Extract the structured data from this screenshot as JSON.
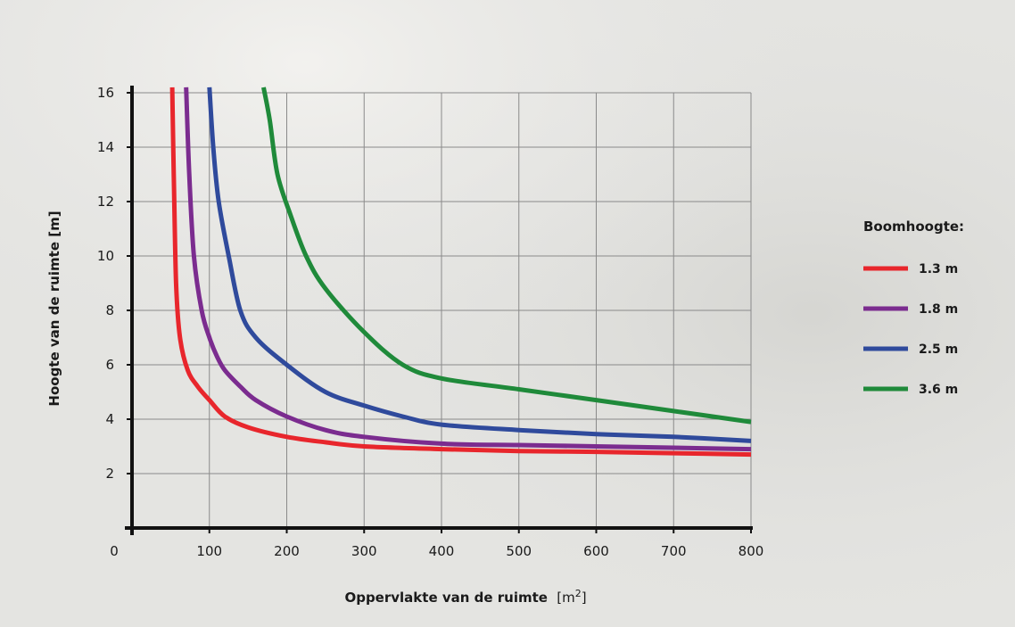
{
  "chart_data": {
    "type": "line",
    "title": "",
    "xlabel": "Oppervlakte van de ruimte",
    "xlabel_unit_base": "m",
    "xlabel_unit_exp": "2",
    "ylabel": "Hoogte van de ruimte [m]",
    "xlim": [
      0,
      800
    ],
    "ylim": [
      0,
      16
    ],
    "x_ticks": [
      "0",
      "100",
      "200",
      "300",
      "400",
      "500",
      "600",
      "700",
      "800"
    ],
    "y_ticks": [
      "2",
      "4",
      "6",
      "8",
      "10",
      "12",
      "14",
      "16"
    ],
    "grid": true,
    "legend_title": "Boomhoogte:",
    "legend_position": "right",
    "series": [
      {
        "name": "1.3 m",
        "color": "#e8262c",
        "points": [
          [
            52,
            16.2
          ],
          [
            54,
            13
          ],
          [
            57,
            9
          ],
          [
            62,
            7
          ],
          [
            72,
            5.8
          ],
          [
            85,
            5.2
          ],
          [
            100,
            4.7
          ],
          [
            120,
            4.1
          ],
          [
            150,
            3.7
          ],
          [
            200,
            3.35
          ],
          [
            250,
            3.15
          ],
          [
            300,
            3.0
          ],
          [
            400,
            2.9
          ],
          [
            500,
            2.83
          ],
          [
            600,
            2.8
          ],
          [
            700,
            2.75
          ],
          [
            800,
            2.7
          ]
        ]
      },
      {
        "name": "1.8 m",
        "color": "#7b2c8f",
        "points": [
          [
            70,
            16.2
          ],
          [
            74,
            13
          ],
          [
            80,
            10
          ],
          [
            90,
            8
          ],
          [
            100,
            7
          ],
          [
            110,
            6.3
          ],
          [
            120,
            5.8
          ],
          [
            140,
            5.2
          ],
          [
            160,
            4.7
          ],
          [
            200,
            4.1
          ],
          [
            250,
            3.6
          ],
          [
            300,
            3.35
          ],
          [
            400,
            3.1
          ],
          [
            500,
            3.05
          ],
          [
            600,
            3.0
          ],
          [
            700,
            2.95
          ],
          [
            800,
            2.9
          ]
        ]
      },
      {
        "name": "2.5 m",
        "color": "#2f4a9c",
        "points": [
          [
            100,
            16.2
          ],
          [
            105,
            14
          ],
          [
            112,
            12
          ],
          [
            125,
            10
          ],
          [
            140,
            8
          ],
          [
            160,
            7
          ],
          [
            200,
            6
          ],
          [
            250,
            5
          ],
          [
            300,
            4.5
          ],
          [
            350,
            4.1
          ],
          [
            400,
            3.8
          ],
          [
            500,
            3.6
          ],
          [
            600,
            3.45
          ],
          [
            700,
            3.35
          ],
          [
            800,
            3.2
          ]
        ]
      },
      {
        "name": "3.6 m",
        "color": "#1f8a3a",
        "points": [
          [
            170,
            16.2
          ],
          [
            178,
            15
          ],
          [
            188,
            13
          ],
          [
            205,
            11.5
          ],
          [
            225,
            10
          ],
          [
            250,
            8.8
          ],
          [
            300,
            7.2
          ],
          [
            350,
            6
          ],
          [
            400,
            5.5
          ],
          [
            500,
            5.1
          ],
          [
            600,
            4.7
          ],
          [
            700,
            4.3
          ],
          [
            800,
            3.9
          ]
        ]
      }
    ]
  }
}
